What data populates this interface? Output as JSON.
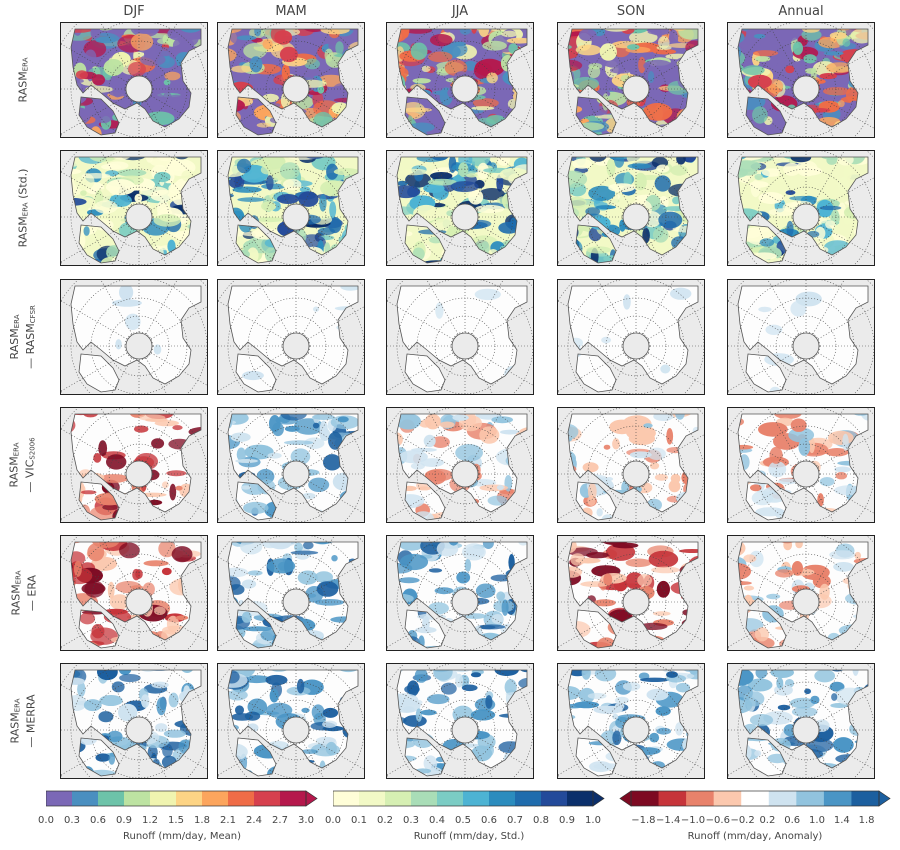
{
  "columns": [
    "DJF",
    "MAM",
    "JJA",
    "SON",
    "Annual"
  ],
  "rows": [
    {
      "main": "RASM",
      "sub": "ERA",
      "suffix": "",
      "line2": "",
      "line2_sub": "",
      "scale": "mean"
    },
    {
      "main": "RASM",
      "sub": "ERA",
      "suffix": " (Std.)",
      "line2": "",
      "line2_sub": "",
      "scale": "std"
    },
    {
      "main": "RASM",
      "sub": "ERA",
      "suffix": "",
      "line2": "— RASM",
      "line2_sub": "CFSR",
      "scale": "anom"
    },
    {
      "main": "RASM",
      "sub": "ERA",
      "suffix": "",
      "line2": "— VIC",
      "line2_sub": "S2006",
      "scale": "anom"
    },
    {
      "main": "RASM",
      "sub": "ERA",
      "suffix": "",
      "line2": "— ERA",
      "line2_sub": "",
      "scale": "anom"
    },
    {
      "main": "RASM",
      "sub": "ERA",
      "suffix": "",
      "line2": "— MERRA",
      "line2_sub": "",
      "scale": "anom"
    }
  ],
  "colorbars": [
    {
      "key": "mean",
      "label": "Runoff (mm/day, Mean)",
      "ticks": [
        "0.0",
        "0.3",
        "0.6",
        "0.9",
        "1.2",
        "1.5",
        "1.8",
        "2.1",
        "2.4",
        "2.7",
        "3.0"
      ],
      "colors": [
        "#7b68b6",
        "#4a8fc0",
        "#6dc3a9",
        "#bde3a2",
        "#f0f4b0",
        "#fdd485",
        "#fca55d",
        "#ef6c47",
        "#d6404e",
        "#b5184c"
      ],
      "extend": "max"
    },
    {
      "key": "std",
      "label": "Runoff (mm/day, Std.)",
      "ticks": [
        "0.0",
        "0.1",
        "0.2",
        "0.3",
        "0.4",
        "0.5",
        "0.6",
        "0.7",
        "0.8",
        "0.9",
        "1.0"
      ],
      "colors": [
        "#fffed8",
        "#f2f9c6",
        "#d6efb3",
        "#a9ddb7",
        "#7bccc4",
        "#4db3d3",
        "#2b8cbe",
        "#1f6cad",
        "#234a9a",
        "#0b2f6b"
      ],
      "extend": "max"
    },
    {
      "key": "anom",
      "label": "Runoff (mm/day, Anomaly)",
      "ticks": [
        "−1.8",
        "−1.4",
        "−1.0",
        "−0.6",
        "−0.2",
        "0.2",
        "0.6",
        "1.0",
        "1.4",
        "1.8"
      ],
      "colors": [
        "#7d0a22",
        "#c6343a",
        "#e8826b",
        "#fbc8ae",
        "#ffffff",
        "#cfe3f0",
        "#91c3de",
        "#4a95c5",
        "#1c5f9f"
      ],
      "extend": "both"
    }
  ]
}
